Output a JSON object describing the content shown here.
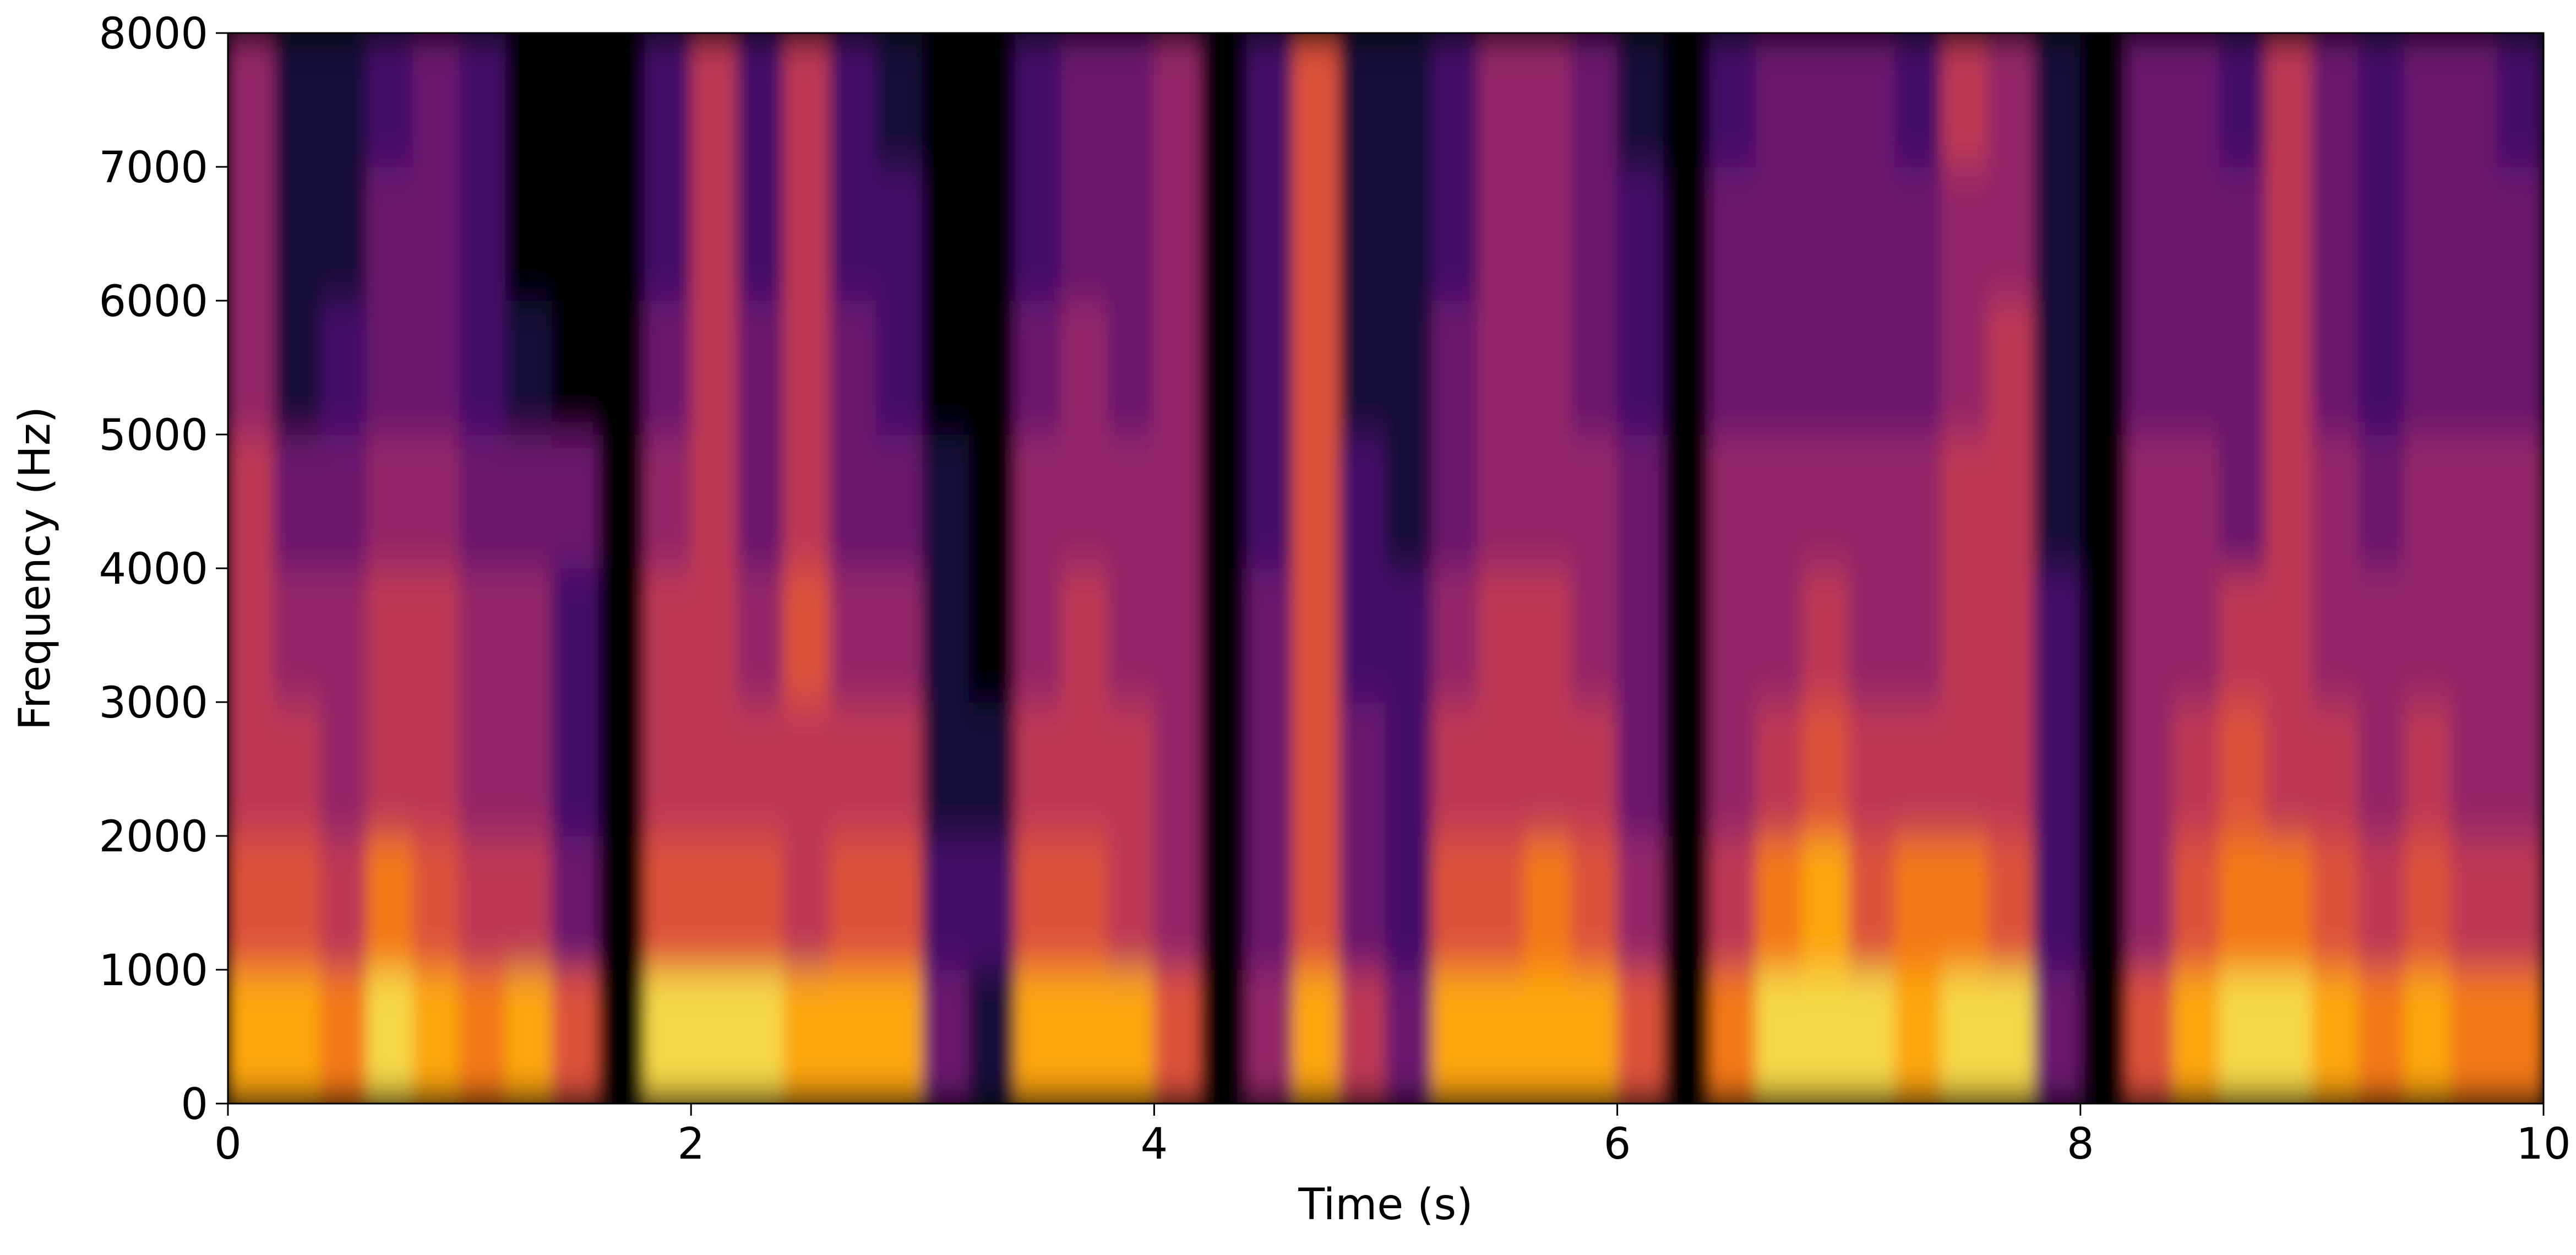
{
  "chart_data": {
    "type": "spectrogram",
    "xlabel": "Time (s)",
    "ylabel": "Frequency (Hz)",
    "xlim": [
      0,
      10
    ],
    "ylim": [
      0,
      8000
    ],
    "xticks": [
      0,
      2,
      4,
      6,
      8,
      10
    ],
    "yticks": [
      0,
      1000,
      2000,
      3000,
      4000,
      5000,
      6000,
      7000,
      8000
    ],
    "colormap": "inferno",
    "zlim": [
      0,
      10
    ],
    "z": [
      [
        8,
        8,
        7,
        9,
        8,
        7,
        8,
        6,
        0,
        9,
        9,
        9,
        8,
        8,
        8,
        3,
        1,
        8,
        8,
        8,
        6,
        0,
        4,
        8,
        5,
        3,
        8,
        8,
        8,
        8,
        6,
        0,
        7,
        9,
        9,
        9,
        8,
        9,
        9,
        3,
        0,
        6,
        8,
        9,
        9,
        8,
        7,
        8,
        7,
        7
      ],
      [
        6,
        6,
        5,
        7,
        6,
        5,
        5,
        3,
        0,
        6,
        6,
        6,
        5,
        6,
        6,
        2,
        2,
        6,
        6,
        5,
        4,
        0,
        3,
        6,
        3,
        2,
        6,
        6,
        7,
        6,
        4,
        0,
        5,
        7,
        8,
        6,
        7,
        7,
        6,
        2,
        0,
        4,
        6,
        7,
        7,
        6,
        5,
        6,
        5,
        5
      ],
      [
        5,
        5,
        4,
        5,
        5,
        4,
        4,
        2,
        0,
        5,
        5,
        5,
        5,
        5,
        5,
        1,
        1,
        5,
        5,
        5,
        4,
        0,
        3,
        6,
        3,
        2,
        5,
        5,
        5,
        5,
        3,
        0,
        4,
        5,
        6,
        5,
        5,
        5,
        5,
        2,
        0,
        4,
        5,
        6,
        5,
        5,
        4,
        5,
        4,
        4
      ],
      [
        5,
        4,
        4,
        5,
        5,
        4,
        4,
        2,
        0,
        5,
        5,
        4,
        6,
        4,
        4,
        1,
        0,
        4,
        5,
        4,
        4,
        0,
        3,
        6,
        2,
        2,
        4,
        5,
        5,
        4,
        3,
        0,
        4,
        4,
        5,
        4,
        4,
        5,
        5,
        2,
        0,
        4,
        4,
        5,
        5,
        4,
        4,
        4,
        4,
        4
      ],
      [
        5,
        3,
        3,
        4,
        4,
        3,
        3,
        3,
        0,
        4,
        5,
        3,
        5,
        3,
        3,
        1,
        0,
        4,
        4,
        4,
        4,
        0,
        2,
        6,
        2,
        1,
        3,
        4,
        4,
        4,
        3,
        0,
        4,
        4,
        4,
        4,
        4,
        5,
        5,
        1,
        0,
        4,
        4,
        3,
        5,
        4,
        3,
        4,
        4,
        4
      ],
      [
        4,
        1,
        2,
        3,
        3,
        2,
        1,
        0,
        0,
        3,
        5,
        3,
        5,
        3,
        2,
        0,
        0,
        3,
        4,
        3,
        4,
        0,
        2,
        6,
        1,
        1,
        3,
        4,
        4,
        3,
        2,
        0,
        3,
        3,
        3,
        3,
        3,
        4,
        5,
        1,
        0,
        3,
        3,
        3,
        5,
        3,
        2,
        3,
        3,
        3
      ],
      [
        4,
        1,
        1,
        3,
        3,
        2,
        0,
        0,
        0,
        2,
        5,
        2,
        5,
        2,
        2,
        0,
        0,
        2,
        3,
        3,
        4,
        0,
        2,
        6,
        1,
        1,
        2,
        4,
        4,
        3,
        2,
        0,
        3,
        3,
        3,
        3,
        3,
        4,
        4,
        1,
        0,
        3,
        3,
        3,
        5,
        3,
        2,
        3,
        3,
        3
      ],
      [
        4,
        1,
        1,
        2,
        3,
        2,
        0,
        0,
        0,
        2,
        5,
        2,
        5,
        2,
        1,
        0,
        0,
        2,
        3,
        3,
        4,
        0,
        2,
        6,
        1,
        1,
        2,
        4,
        4,
        3,
        1,
        0,
        2,
        3,
        3,
        3,
        2,
        5,
        4,
        1,
        0,
        3,
        3,
        2,
        5,
        3,
        2,
        3,
        3,
        2
      ]
    ]
  }
}
